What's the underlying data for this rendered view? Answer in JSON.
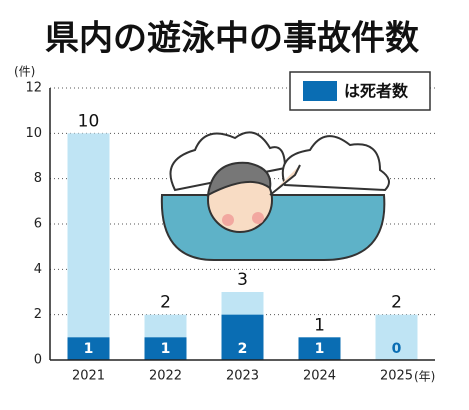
{
  "chart_data": {
    "type": "bar",
    "title": "県内の遊泳中の事故件数",
    "y_unit": "(件)",
    "x_unit": "(年)",
    "categories": [
      "2021",
      "2022",
      "2023",
      "2024",
      "2025"
    ],
    "series": [
      {
        "color": "#bfe4f4",
        "values": [
          10,
          2,
          3,
          1,
          2
        ]
      },
      {
        "name": "は死者数",
        "color": "#0a6db3",
        "values": [
          1,
          1,
          2,
          1,
          0
        ]
      }
    ],
    "overlay": true,
    "ylim": [
      0,
      12
    ],
    "yticks": [
      0,
      2,
      4,
      6,
      8,
      10,
      12
    ],
    "grid": true,
    "legend": "top-right"
  }
}
